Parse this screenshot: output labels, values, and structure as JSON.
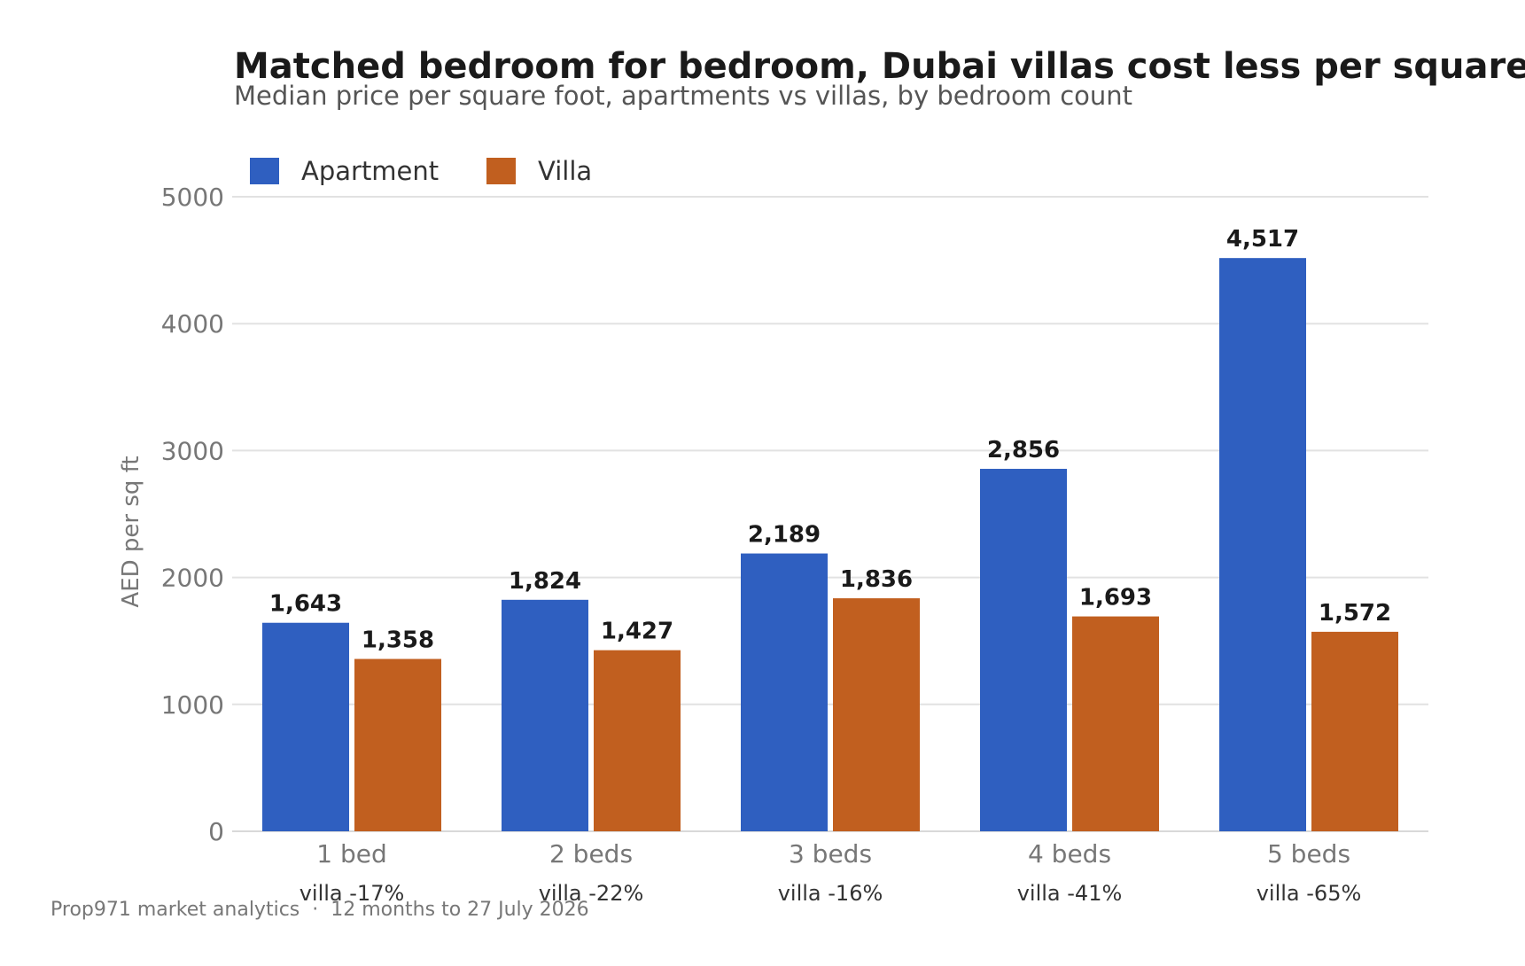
{
  "chart_data": {
    "type": "bar",
    "title": "Matched bedroom for bedroom, Dubai villas cost less per square foot",
    "subtitle": "Median price per square foot, apartments vs villas, by bedroom count",
    "ylabel": "AED per sq ft",
    "xlabel": "",
    "ylim": [
      0,
      5000
    ],
    "yticks": [
      0,
      1000,
      2000,
      3000,
      4000,
      5000
    ],
    "grid": true,
    "legend_position": "top-left",
    "categories": [
      "1 bed",
      "2 beds",
      "3 beds",
      "4 beds",
      "5 beds"
    ],
    "series": [
      {
        "name": "Apartment",
        "color": "#2f5fc0",
        "values": [
          1643,
          1824,
          2189,
          2856,
          4517
        ],
        "labels": [
          "1,643",
          "1,824",
          "2,189",
          "2,856",
          "4,517"
        ]
      },
      {
        "name": "Villa",
        "color": "#c15f1f",
        "values": [
          1358,
          1427,
          1836,
          1693,
          1572
        ],
        "labels": [
          "1,358",
          "1,427",
          "1,836",
          "1,693",
          "1,572"
        ]
      }
    ],
    "category_notes": [
      "villa -17%",
      "villa -22%",
      "villa -16%",
      "villa -41%",
      "villa -65%"
    ],
    "footer": "Prop971 market analytics  ·  12 months to 27 July 2026"
  }
}
